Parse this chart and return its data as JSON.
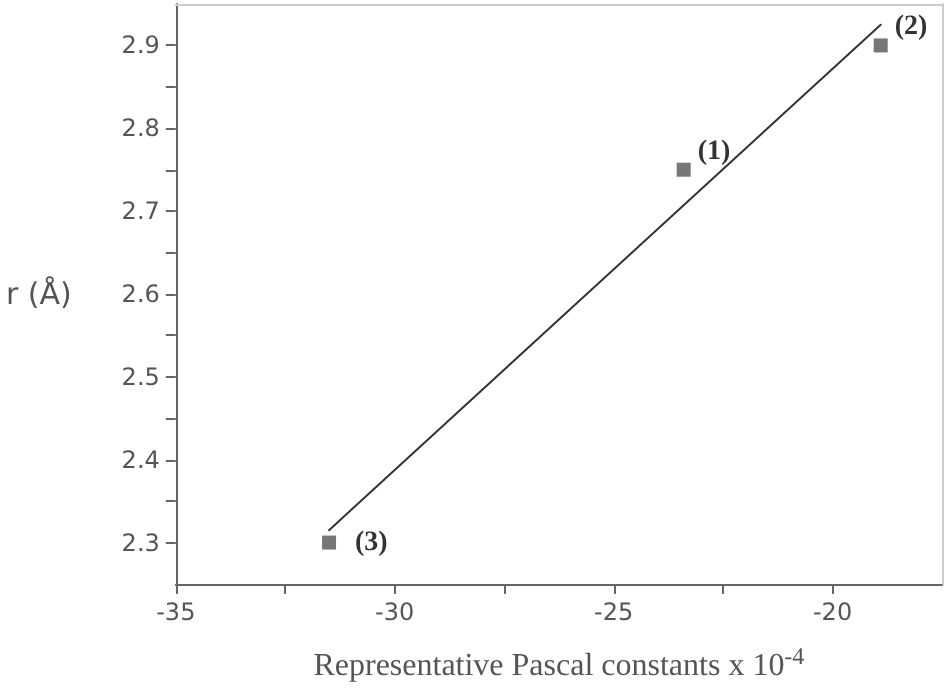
{
  "chart_data": {
    "type": "scatter",
    "xlabel": "Representative Pascal constants x 10$^{-4}$",
    "ylabel": "r (Å)",
    "x": [
      -23.4,
      -18.9,
      -31.5
    ],
    "series": [
      {
        "color": "#555555",
        "marker": "square",
        "values": [
          2.75,
          2.9,
          2.3
        ]
      },
      {
        "type": "line",
        "color": "#333333",
        "marker": "none",
        "line_style": "solid",
        "x": [
          -31.5,
          -18.9
        ],
        "values": [
          2.315,
          2.925
        ]
      }
    ],
    "annotations": [
      {
        "text": "(1)",
        "x": -23.4,
        "y": 2.75
      },
      {
        "text": "(2)",
        "x": -18.9,
        "y": 2.9
      },
      {
        "text": "(3)",
        "x": -31.5,
        "y": 2.3
      }
    ],
    "xlim": [
      -35,
      -17.5
    ],
    "xticks": [
      -35,
      -30,
      -25,
      -20
    ],
    "ylim": [
      2.25,
      2.95
    ],
    "yticks": [
      2.3,
      2.4,
      2.5,
      2.6,
      2.7,
      2.8,
      2.9
    ],
    "grid": false
  }
}
